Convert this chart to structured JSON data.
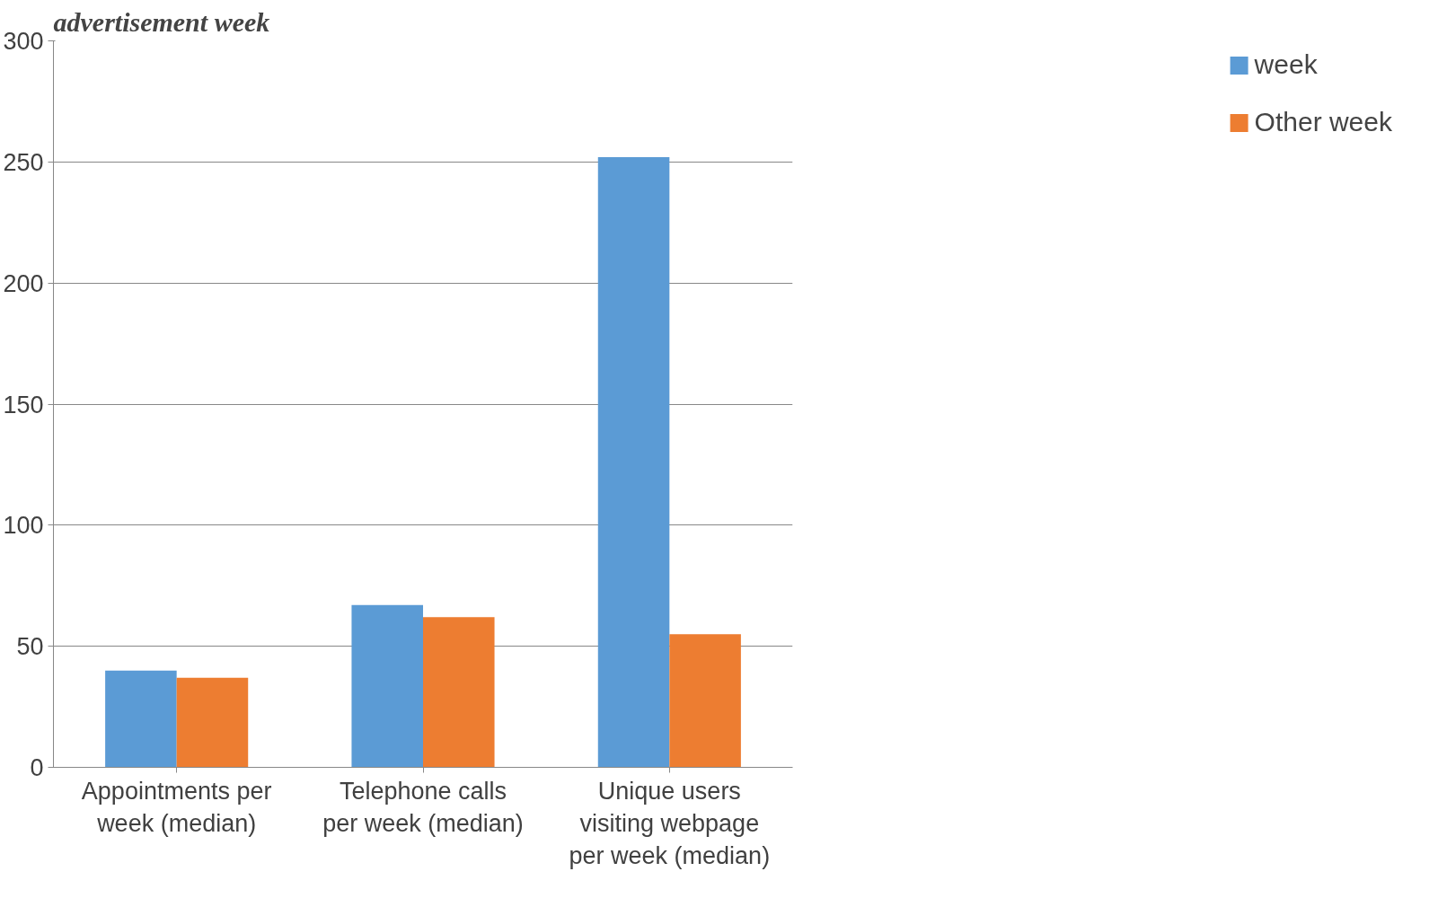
{
  "chart_data": {
    "type": "bar",
    "title": "advertisement week",
    "categories": [
      "Appointments per week (median)",
      "Telephone calls per week (median)",
      "Unique users visiting webpage per week (median)"
    ],
    "series": [
      {
        "name": "week",
        "color": "#5b9bd5",
        "values": [
          40,
          67,
          252
        ]
      },
      {
        "name": "Other week",
        "color": "#ed7d31",
        "values": [
          37,
          62,
          55
        ]
      }
    ],
    "ylim": [
      0,
      300
    ],
    "yticks": [
      0,
      50,
      100,
      150,
      200,
      250,
      300
    ],
    "grid": "y",
    "legend": "right"
  }
}
